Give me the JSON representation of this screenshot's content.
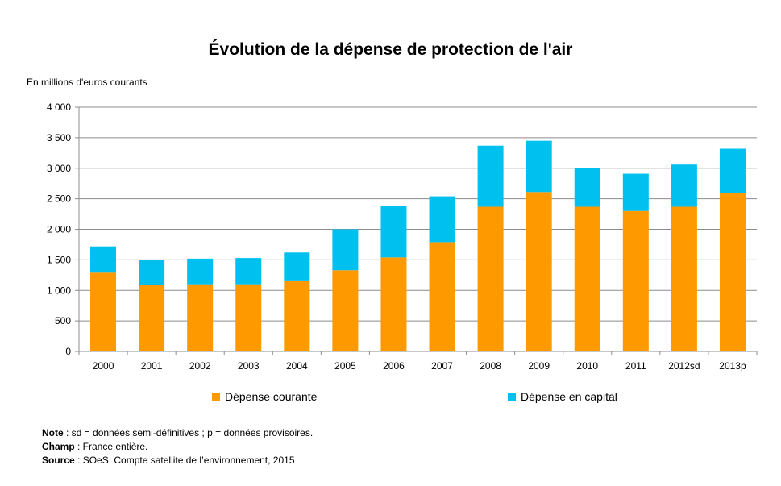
{
  "chart_data": {
    "type": "bar",
    "stacked": true,
    "title": "Évolution de la dépense de protection de l'air",
    "ylabel": "En millions d'euros courants",
    "ylim": [
      0,
      4000
    ],
    "yticks": [
      0,
      500,
      1000,
      1500,
      2000,
      2500,
      3000,
      3500,
      4000
    ],
    "ytick_labels": [
      "0",
      "500",
      "1 000",
      "1 500",
      "2 000",
      "2 500",
      "3 000",
      "3 500",
      "4 000"
    ],
    "grid": true,
    "legend_position": "bottom",
    "categories": [
      "2000",
      "2001",
      "2002",
      "2003",
      "2004",
      "2005",
      "2006",
      "2007",
      "2008",
      "2009",
      "2010",
      "2011",
      "2012sd",
      "2013p"
    ],
    "series": [
      {
        "name": "Dépense courante",
        "color": "#ff9900",
        "values": [
          1290,
          1090,
          1100,
          1100,
          1150,
          1330,
          1540,
          1790,
          2370,
          2610,
          2370,
          2300,
          2370,
          2590
        ]
      },
      {
        "name": "Dépense en capital",
        "color": "#00c0f0",
        "values": [
          430,
          410,
          420,
          430,
          470,
          670,
          840,
          750,
          1000,
          840,
          640,
          610,
          690,
          730
        ]
      }
    ]
  },
  "notes": {
    "note_label": "Note",
    "note_text": " : sd = données semi-définitives ; p = données provisoires.",
    "champ_label": "Champ",
    "champ_text": " : France entière.",
    "source_label": "Source",
    "source_text": " : SOeS, Compte satellite de l’environnement, 2015"
  }
}
